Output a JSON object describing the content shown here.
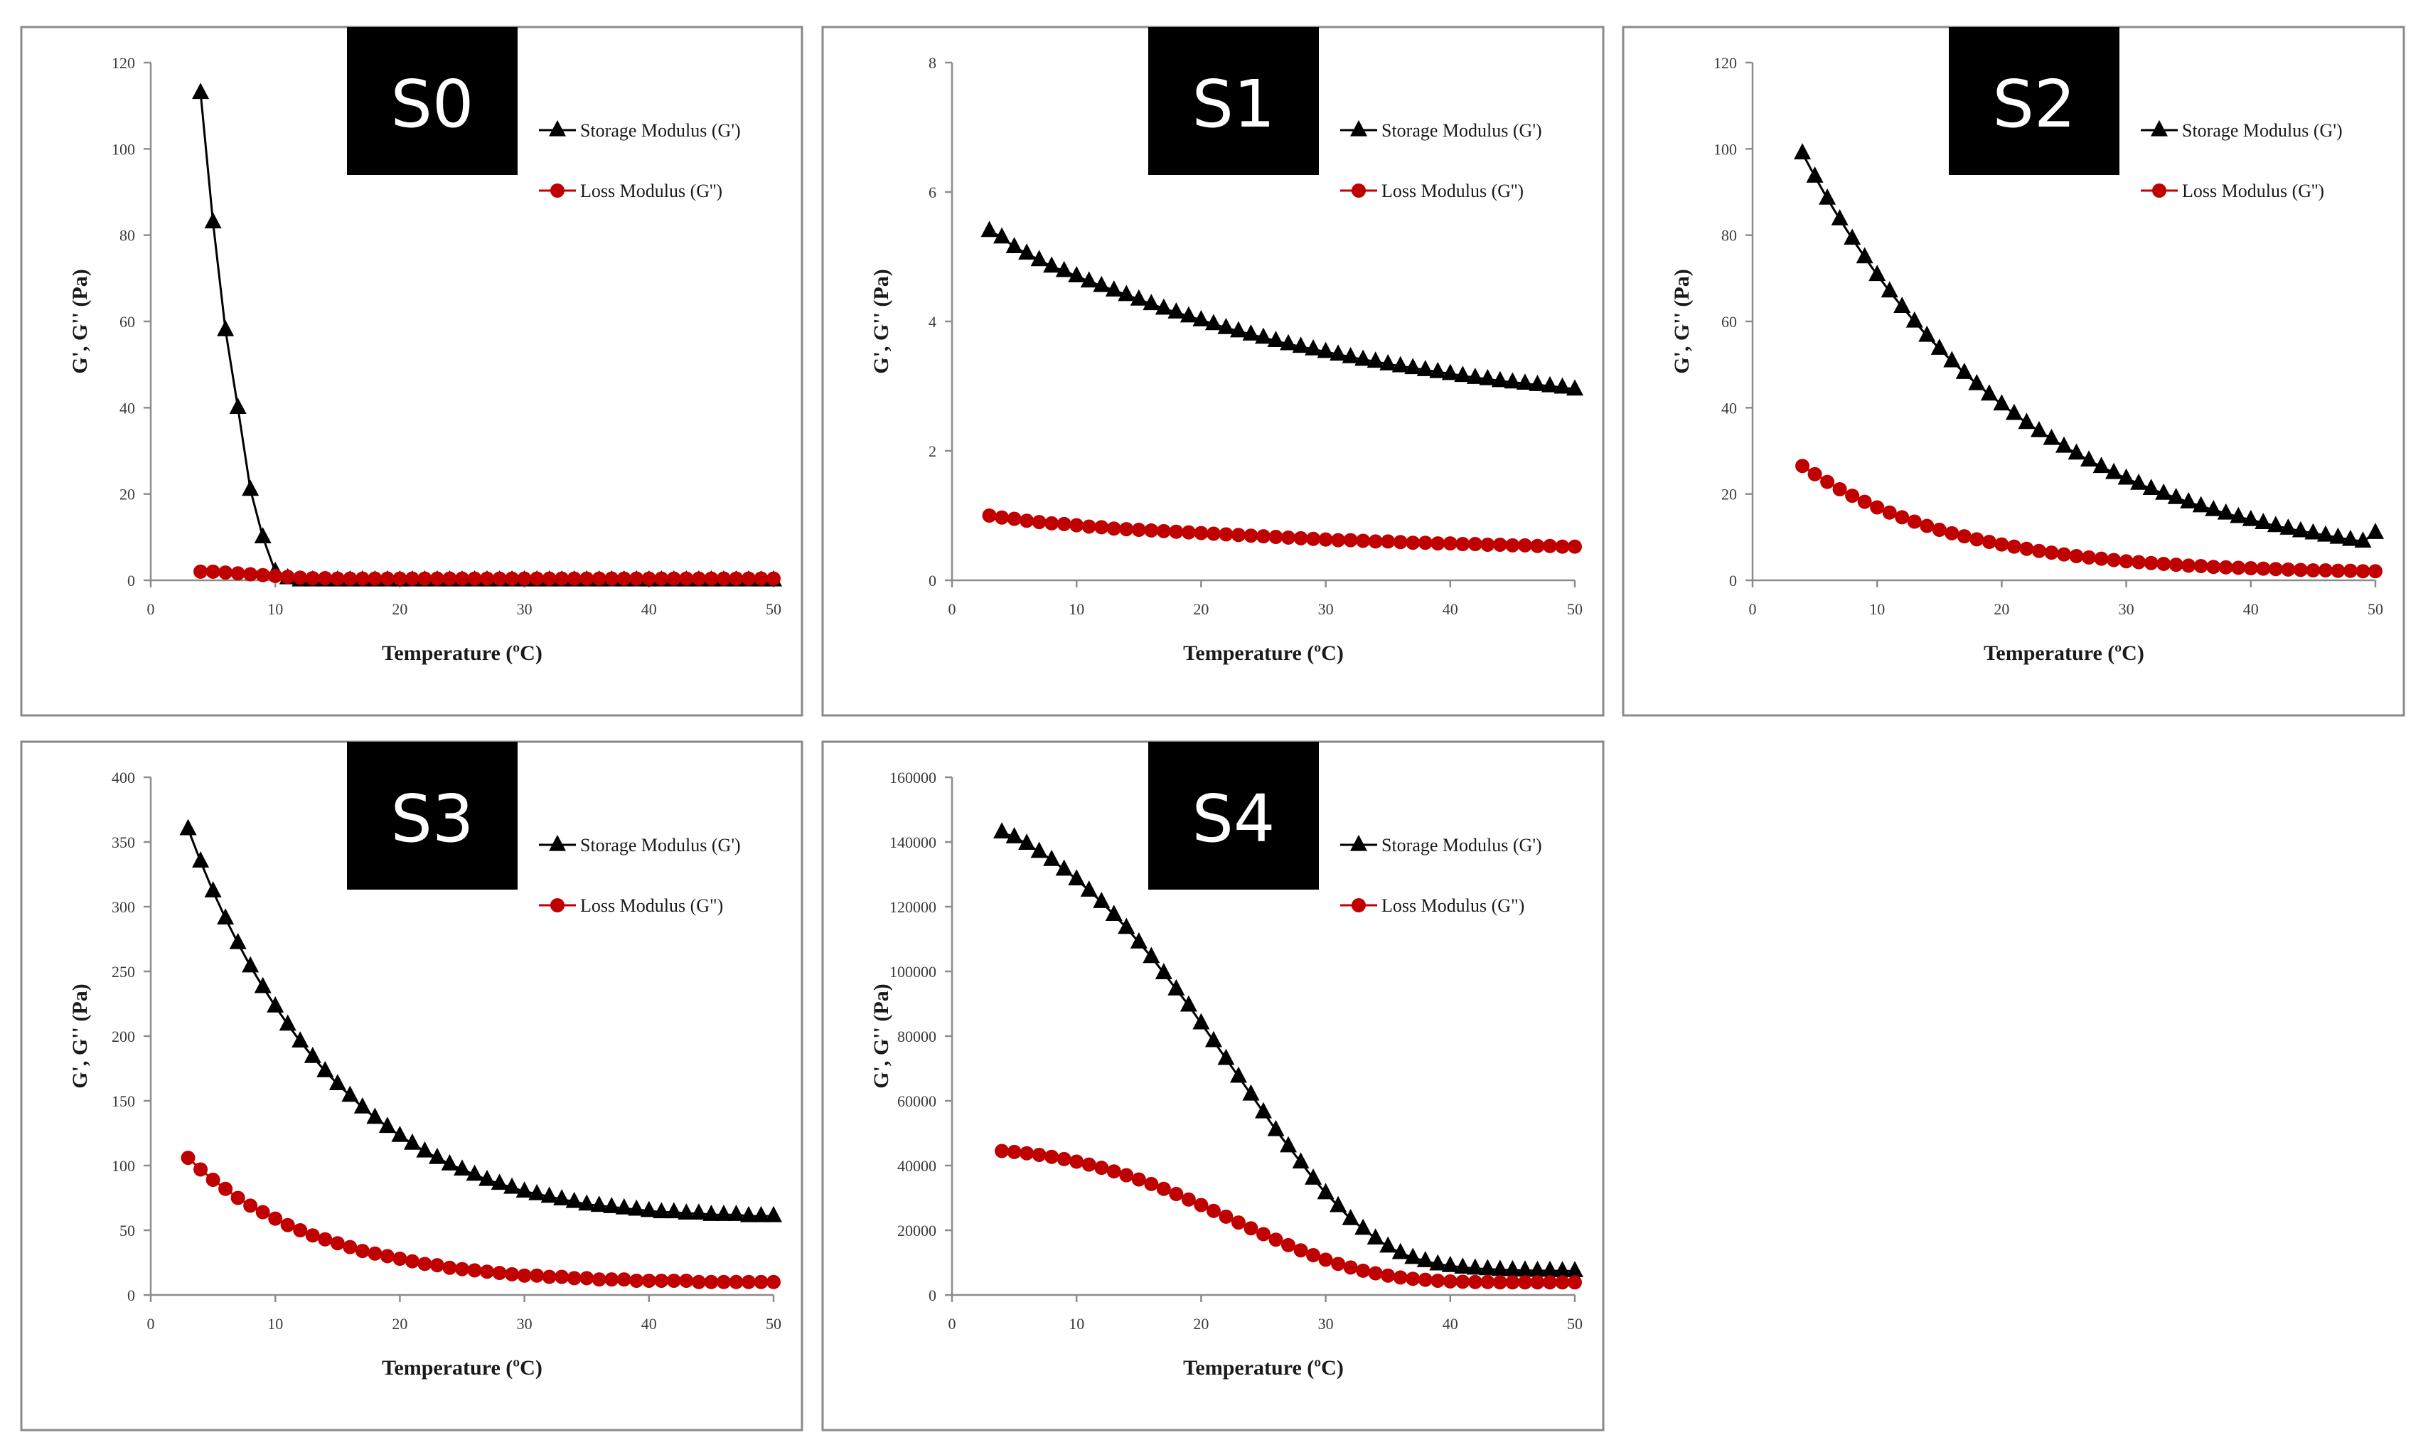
{
  "colors": {
    "storage": "#000000",
    "loss": "#c00000",
    "badge": "#000000",
    "axis": "#8c8c8c"
  },
  "chart_data": [
    {
      "type": "line",
      "badge": "S0",
      "xlabel": "Temperature (ºC)",
      "ylabel": "G', G'' (Pa)",
      "xlim": [
        0,
        50
      ],
      "ylim": [
        0,
        120
      ],
      "xticks": [
        0,
        10,
        20,
        30,
        40,
        50
      ],
      "yticks": [
        0,
        20,
        40,
        60,
        80,
        100,
        120
      ],
      "x": [
        4,
        5,
        6,
        7,
        8,
        9,
        10,
        11,
        12,
        13,
        14,
        15,
        16,
        17,
        18,
        19,
        20,
        21,
        22,
        23,
        24,
        25,
        26,
        27,
        28,
        29,
        30,
        31,
        32,
        33,
        34,
        35,
        36,
        37,
        38,
        39,
        40,
        41,
        42,
        43,
        44,
        45,
        46,
        47,
        48,
        49,
        50
      ],
      "series": [
        {
          "name": "Storage Modulus (G')",
          "marker": "triangle",
          "values": [
            113,
            83,
            58,
            40,
            21,
            10,
            2,
            0.5,
            0,
            0,
            0,
            0,
            0,
            0,
            0,
            0,
            0,
            0,
            0,
            0,
            0,
            0,
            0,
            0,
            0,
            0,
            0,
            0,
            0,
            0,
            0,
            0,
            0,
            0,
            0,
            0,
            0,
            0,
            0,
            0,
            0,
            0,
            0,
            0,
            0,
            0,
            0
          ]
        },
        {
          "name": "Loss Modulus (G'')",
          "marker": "circle",
          "values": [
            2,
            2,
            1.8,
            1.6,
            1.4,
            1.2,
            1,
            0.8,
            0.6,
            0.5,
            0.5,
            0.4,
            0.4,
            0.4,
            0.4,
            0.4,
            0.4,
            0.4,
            0.4,
            0.4,
            0.4,
            0.4,
            0.4,
            0.4,
            0.4,
            0.4,
            0.4,
            0.4,
            0.4,
            0.4,
            0.4,
            0.4,
            0.4,
            0.4,
            0.4,
            0.4,
            0.4,
            0.4,
            0.4,
            0.4,
            0.4,
            0.4,
            0.4,
            0.4,
            0.4,
            0.4,
            0.4
          ]
        }
      ]
    },
    {
      "type": "line",
      "badge": "S1",
      "xlabel": "Temperature (ºC)",
      "ylabel": "G', G'' (Pa)",
      "xlim": [
        0,
        50
      ],
      "ylim": [
        0,
        8
      ],
      "xticks": [
        0,
        10,
        20,
        30,
        40,
        50
      ],
      "yticks": [
        0,
        2,
        4,
        6,
        8
      ],
      "x": [
        3,
        4,
        5,
        6,
        7,
        8,
        9,
        10,
        11,
        12,
        13,
        14,
        15,
        16,
        17,
        18,
        19,
        20,
        21,
        22,
        23,
        24,
        25,
        26,
        27,
        28,
        29,
        30,
        31,
        32,
        33,
        34,
        35,
        36,
        37,
        38,
        39,
        40,
        41,
        42,
        43,
        44,
        45,
        46,
        47,
        48,
        49,
        50
      ],
      "series": [
        {
          "name": "Storage Modulus (G')",
          "marker": "triangle",
          "values": [
            5.4,
            5.3,
            5.15,
            5.05,
            4.95,
            4.85,
            4.78,
            4.7,
            4.62,
            4.55,
            4.48,
            4.41,
            4.34,
            4.27,
            4.2,
            4.14,
            4.08,
            4.02,
            3.96,
            3.9,
            3.85,
            3.8,
            3.75,
            3.7,
            3.65,
            3.61,
            3.57,
            3.53,
            3.49,
            3.45,
            3.41,
            3.38,
            3.34,
            3.31,
            3.28,
            3.25,
            3.22,
            3.19,
            3.16,
            3.13,
            3.11,
            3.08,
            3.06,
            3.04,
            3.02,
            3.0,
            2.98,
            2.95
          ]
        },
        {
          "name": "Loss Modulus (G'')",
          "marker": "circle",
          "values": [
            1.0,
            0.97,
            0.95,
            0.92,
            0.9,
            0.88,
            0.87,
            0.85,
            0.83,
            0.82,
            0.8,
            0.79,
            0.78,
            0.77,
            0.76,
            0.75,
            0.74,
            0.73,
            0.72,
            0.71,
            0.7,
            0.69,
            0.68,
            0.67,
            0.66,
            0.65,
            0.64,
            0.63,
            0.62,
            0.62,
            0.61,
            0.6,
            0.6,
            0.59,
            0.58,
            0.58,
            0.57,
            0.57,
            0.56,
            0.56,
            0.55,
            0.55,
            0.54,
            0.54,
            0.53,
            0.53,
            0.52,
            0.52
          ]
        }
      ]
    },
    {
      "type": "line",
      "badge": "S2",
      "xlabel": "Temperature (ºC)",
      "ylabel": "G', G'' (Pa)",
      "xlim": [
        0,
        50
      ],
      "ylim": [
        0,
        120
      ],
      "xticks": [
        0,
        10,
        20,
        30,
        40,
        50
      ],
      "yticks": [
        0,
        20,
        40,
        60,
        80,
        100,
        120
      ],
      "x": [
        4,
        5,
        6,
        7,
        8,
        9,
        10,
        11,
        12,
        13,
        14,
        15,
        16,
        17,
        18,
        19,
        20,
        21,
        22,
        23,
        24,
        25,
        26,
        27,
        28,
        29,
        30,
        31,
        32,
        33,
        34,
        35,
        36,
        37,
        38,
        39,
        40,
        41,
        42,
        43,
        44,
        45,
        46,
        47,
        48,
        49,
        50
      ],
      "series": [
        {
          "name": "Storage Modulus (G')",
          "marker": "triangle",
          "values": [
            99,
            93.6,
            88.5,
            83.7,
            79.2,
            74.9,
            70.8,
            67,
            63.4,
            60,
            56.7,
            53.7,
            50.8,
            48.1,
            45.5,
            43.1,
            40.8,
            38.6,
            36.5,
            34.6,
            32.8,
            31,
            29.4,
            27.8,
            26.3,
            24.9,
            23.6,
            22.4,
            21.2,
            20.1,
            19.1,
            18.1,
            17.2,
            16.3,
            15.5,
            14.7,
            14,
            13.3,
            12.6,
            12,
            11.4,
            10.9,
            10.4,
            9.9,
            9.4,
            9,
            11
          ]
        },
        {
          "name": "Loss Modulus (G'')",
          "marker": "circle",
          "values": [
            26.5,
            24.6,
            22.8,
            21.1,
            19.6,
            18.2,
            16.9,
            15.7,
            14.6,
            13.6,
            12.6,
            11.7,
            10.9,
            10.2,
            9.5,
            8.9,
            8.3,
            7.8,
            7.3,
            6.8,
            6.4,
            6,
            5.6,
            5.3,
            5,
            4.7,
            4.4,
            4.2,
            4,
            3.8,
            3.6,
            3.4,
            3.3,
            3.1,
            3,
            2.9,
            2.8,
            2.7,
            2.6,
            2.5,
            2.4,
            2.3,
            2.3,
            2.2,
            2.2,
            2.1,
            2.1
          ]
        }
      ]
    },
    {
      "type": "line",
      "badge": "S3",
      "xlabel": "Temperature (ºC)",
      "ylabel": "G', G'' (Pa)",
      "xlim": [
        0,
        50
      ],
      "ylim": [
        0,
        400
      ],
      "xticks": [
        0,
        10,
        20,
        30,
        40,
        50
      ],
      "yticks": [
        0,
        50,
        100,
        150,
        200,
        250,
        300,
        350,
        400
      ],
      "x": [
        3,
        4,
        5,
        6,
        7,
        8,
        9,
        10,
        11,
        12,
        13,
        14,
        15,
        16,
        17,
        18,
        19,
        20,
        21,
        22,
        23,
        24,
        25,
        26,
        27,
        28,
        29,
        30,
        31,
        32,
        33,
        34,
        35,
        36,
        37,
        38,
        39,
        40,
        41,
        42,
        43,
        44,
        45,
        46,
        47,
        48,
        49,
        50
      ],
      "series": [
        {
          "name": "Storage Modulus  (G')",
          "marker": "triangle",
          "values": [
            360,
            335,
            312,
            291,
            272,
            254,
            238,
            223,
            209,
            196,
            184,
            173,
            163,
            154,
            145,
            137,
            130,
            123,
            117,
            111,
            106,
            101,
            97,
            93,
            89,
            86,
            83,
            80,
            78,
            76,
            74,
            72,
            70,
            69,
            68,
            67,
            66,
            65,
            64,
            64,
            63,
            63,
            62,
            62,
            62,
            61,
            61,
            61
          ]
        },
        {
          "name": "Loss Modulus (G\")",
          "marker": "circle",
          "values": [
            106,
            97,
            89,
            82,
            75,
            69,
            64,
            59,
            54,
            50,
            46,
            43,
            40,
            37,
            34,
            32,
            30,
            28,
            26,
            24,
            23,
            21,
            20,
            19,
            18,
            17,
            16,
            15,
            15,
            14,
            14,
            13,
            13,
            12,
            12,
            12,
            11,
            11,
            11,
            11,
            11,
            10,
            10,
            10,
            10,
            10,
            10,
            10
          ]
        }
      ]
    },
    {
      "type": "line",
      "badge": "S4",
      "xlabel": "Temperature (ºC)",
      "ylabel": "G', G'' (Pa)",
      "xlim": [
        0,
        50
      ],
      "ylim": [
        0,
        160000
      ],
      "xticks": [
        0,
        10,
        20,
        30,
        40,
        50
      ],
      "yticks": [
        0,
        20000,
        40000,
        60000,
        80000,
        100000,
        120000,
        140000,
        160000
      ],
      "x": [
        4,
        5,
        6,
        7,
        8,
        9,
        10,
        11,
        12,
        13,
        14,
        15,
        16,
        17,
        18,
        19,
        20,
        21,
        22,
        23,
        24,
        25,
        26,
        27,
        28,
        29,
        30,
        31,
        32,
        33,
        34,
        35,
        36,
        37,
        38,
        39,
        40,
        41,
        42,
        43,
        44,
        45,
        46,
        47,
        48,
        49,
        50
      ],
      "series": [
        {
          "name": "Storage Modulus (G')",
          "marker": "triangle",
          "values": [
            143000,
            141500,
            139500,
            137000,
            134500,
            131500,
            128500,
            125000,
            121500,
            117500,
            113500,
            109000,
            104500,
            99500,
            94500,
            89500,
            84000,
            78500,
            73000,
            67500,
            62000,
            56500,
            51000,
            46000,
            41000,
            36000,
            31500,
            27500,
            23500,
            20500,
            17500,
            15000,
            13000,
            11500,
            10500,
            9500,
            9000,
            8500,
            8200,
            8000,
            7800,
            7700,
            7600,
            7500,
            7500,
            7400,
            7400
          ]
        },
        {
          "name": "Loss Modulus (G\")",
          "marker": "circle",
          "values": [
            44500,
            44200,
            43800,
            43300,
            42700,
            42000,
            41200,
            40300,
            39300,
            38200,
            37000,
            35700,
            34300,
            32800,
            31200,
            29500,
            27800,
            26000,
            24200,
            22400,
            20600,
            18800,
            17100,
            15400,
            13800,
            12300,
            10900,
            9600,
            8500,
            7500,
            6700,
            6000,
            5400,
            5000,
            4700,
            4400,
            4200,
            4100,
            4000,
            4000,
            3900,
            3900,
            3900,
            3900,
            3900,
            3900,
            3900
          ]
        }
      ]
    }
  ]
}
